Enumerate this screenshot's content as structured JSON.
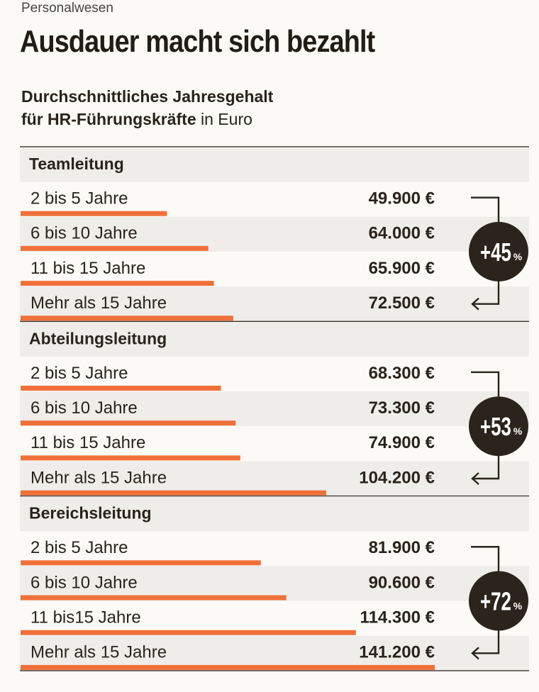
{
  "header": {
    "kicker": "Personalwesen",
    "headline": "Ausdauer macht sich bezahlt",
    "subtitle_bold_1": "Durchschnittliches Jahresgehalt",
    "subtitle_bold_2": "für HR-Führungskräfte",
    "subtitle_unit": " in Euro"
  },
  "colors": {
    "bar": "#f0703a",
    "row_shade": "#efedea",
    "circle": "#2b241d",
    "rule": "#3a332c"
  },
  "chart_data": {
    "type": "bar",
    "orientation": "horizontal",
    "unit": "Euro",
    "groups": [
      {
        "name": "Teamleitung",
        "categories": [
          "2 bis 5 Jahre",
          "6 bis 10 Jahre",
          "11 bis 15 Jahre",
          "Mehr als 15 Jahre"
        ],
        "values": [
          49900,
          64000,
          65900,
          72500
        ],
        "value_labels": [
          "49.900 €",
          "64.000 €",
          "65.900 €",
          "72.500 €"
        ],
        "change_label": "+45",
        "change_unit": "%"
      },
      {
        "name": "Abteilungsleitung",
        "categories": [
          "2 bis 5 Jahre",
          "6 bis 10 Jahre",
          "11 bis 15 Jahre",
          "Mehr als 15 Jahre"
        ],
        "values": [
          68300,
          73300,
          74900,
          104200
        ],
        "value_labels": [
          "68.300 €",
          "73.300 €",
          "74.900 €",
          "104.200 €"
        ],
        "change_label": "+53",
        "change_unit": "%"
      },
      {
        "name": "Bereichsleitung",
        "categories": [
          "2 bis 5 Jahre",
          "6 bis 10 Jahre",
          "11 bis15 Jahre",
          "Mehr als 15 Jahre"
        ],
        "values": [
          81900,
          90600,
          114300,
          141200
        ],
        "value_labels": [
          "81.900 €",
          "90.600 €",
          "114.300 €",
          "141.200 €"
        ],
        "change_label": "+72",
        "change_unit": "%"
      }
    ],
    "value_max": 141200
  }
}
